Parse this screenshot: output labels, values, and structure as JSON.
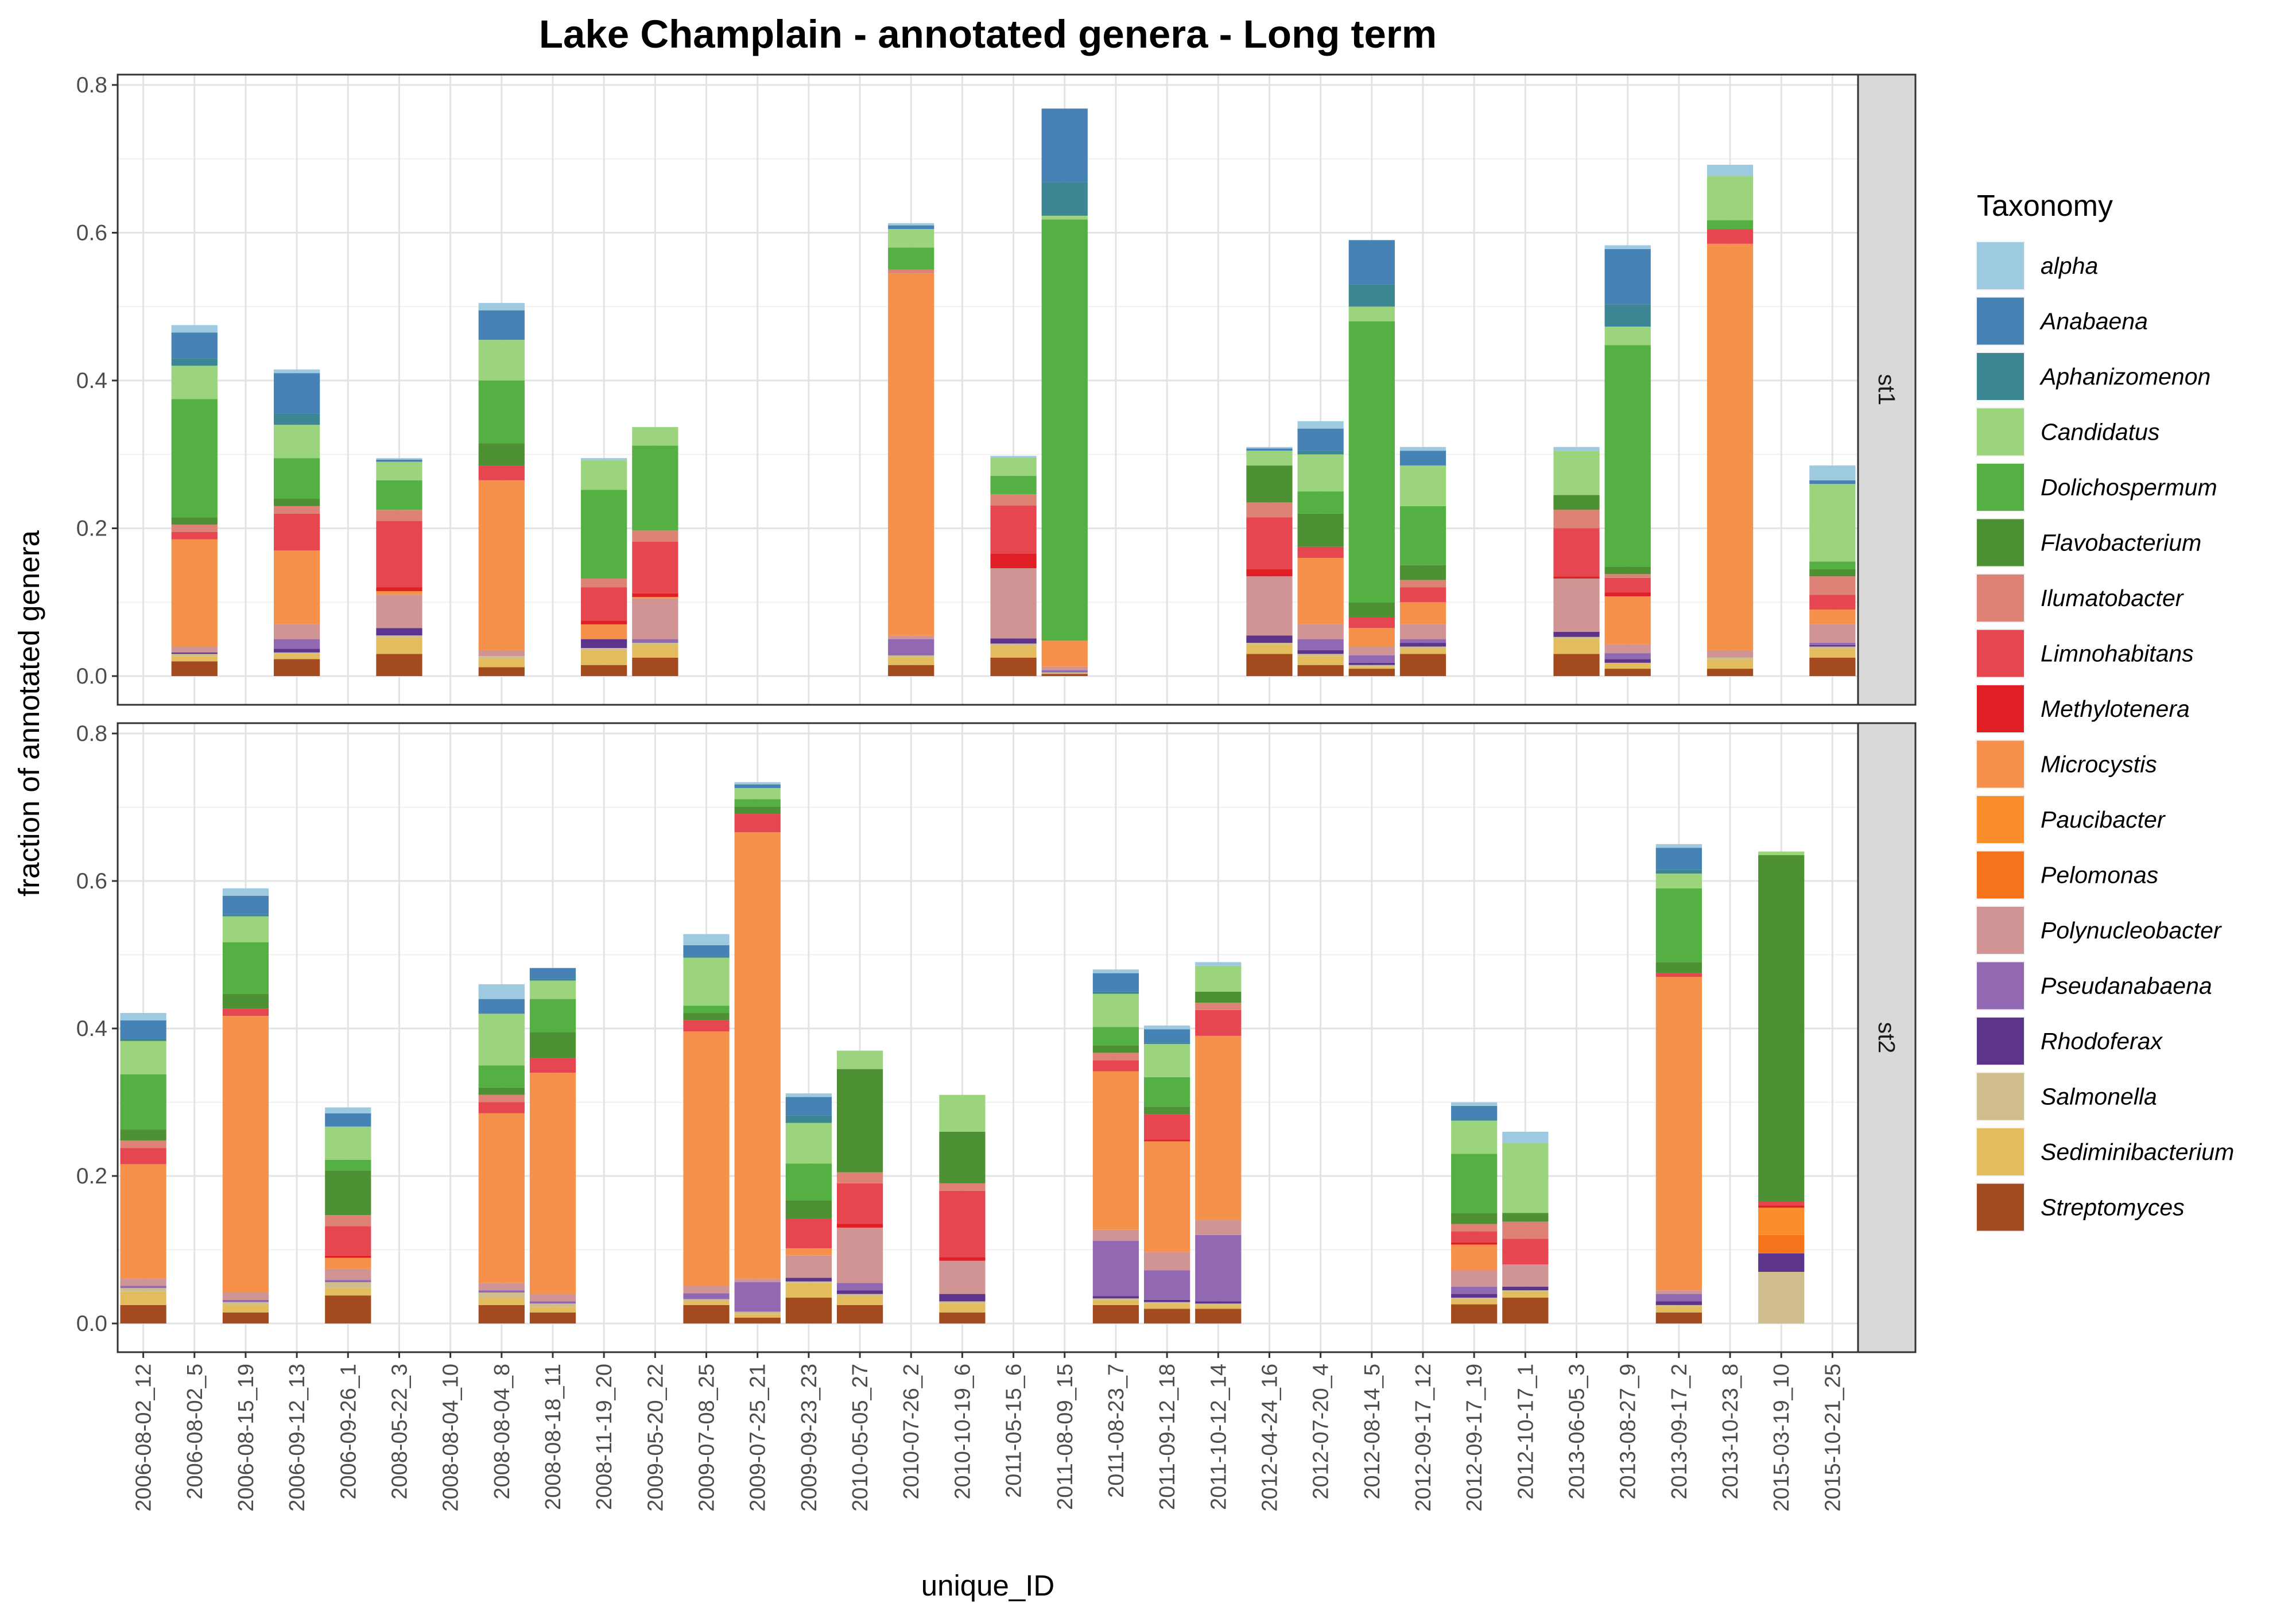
{
  "chart_data": {
    "type": "bar",
    "stacked": true,
    "faceted": true,
    "title": "Lake Champlain - annotated genera - Long term",
    "xlabel": "unique_ID",
    "ylabel": "fraction of annotated genera",
    "ylim": [
      0,
      0.8
    ],
    "yticks": [
      "0.0",
      "0.2",
      "0.4",
      "0.6",
      "0.8"
    ],
    "grid": true,
    "legend_position": "right",
    "legend_title": "Taxonomy",
    "categories": [
      "2006-08-02_12",
      "2006-08-02_5",
      "2006-08-15_19",
      "2006-09-12_13",
      "2006-09-26_1",
      "2008-05-22_3",
      "2008-08-04_10",
      "2008-08-04_8",
      "2008-08-18_11",
      "2008-11-19_20",
      "2009-05-20_22",
      "2009-07-08_25",
      "2009-07-25_21",
      "2009-09-23_23",
      "2010-05-05_27",
      "2010-07-26_2",
      "2010-10-19_6",
      "2011-05-15_6",
      "2011-08-09_15",
      "2011-08-23_7",
      "2011-09-12_18",
      "2011-10-12_14",
      "2012-04-24_16",
      "2012-07-20_4",
      "2012-08-14_5",
      "2012-09-17_12",
      "2012-09-17_19",
      "2012-10-17_1",
      "2013-06-05_3",
      "2013-08-27_9",
      "2013-09-17_2",
      "2013-10-23_8",
      "2015-03-19_10",
      "2015-10-21_25"
    ],
    "taxa": [
      "alpha",
      "Anabaena",
      "Aphanizomenon",
      "Candidatus",
      "Dolichospermum",
      "Flavobacterium",
      "Ilumatobacter",
      "Limnohabitans",
      "Methylotenera",
      "Microcystis",
      "Paucibacter",
      "Pelomonas",
      "Polynucleobacter",
      "Pseudanabaena",
      "Rhodoferax",
      "Salmonella",
      "Sediminibacterium",
      "Streptomyces"
    ],
    "colors": [
      "#9ecae1",
      "#4682b4",
      "#3d8794",
      "#9cd47e",
      "#55b043",
      "#4e9135",
      "#de8275",
      "#e64650",
      "#e01f24",
      "#f5914b",
      "#fa8e2b",
      "#f5731a",
      "#cf9493",
      "#9168b1",
      "#5c348c",
      "#cfbe8c",
      "#e3bc5e",
      "#a34a1f"
    ],
    "facets": [
      {
        "name": "st1",
        "bars": {
          "2006-08-02_5": [
            0.01,
            0.035,
            0.01,
            0.045,
            0.16,
            0.01,
            0.01,
            0.01,
            0.0,
            0.145,
            0.0,
            0.0,
            0.008,
            0.0,
            0.002,
            0.003,
            0.007,
            0.02
          ],
          "2006-09-12_13": [
            0.005,
            0.055,
            0.015,
            0.045,
            0.055,
            0.01,
            0.01,
            0.05,
            0.0,
            0.1,
            0.0,
            0.0,
            0.02,
            0.013,
            0.005,
            0.002,
            0.007,
            0.023
          ],
          "2008-05-22_3": [
            0.002,
            0.003,
            0.0,
            0.025,
            0.04,
            0.0,
            0.015,
            0.09,
            0.005,
            0.005,
            0.0,
            0.0,
            0.045,
            0.0,
            0.01,
            0.003,
            0.022,
            0.03
          ],
          "2008-08-04_8": [
            0.01,
            0.04,
            0.0,
            0.055,
            0.085,
            0.03,
            0.0,
            0.02,
            0.0,
            0.23,
            0.0,
            0.0,
            0.008,
            0.0,
            0.0,
            0.003,
            0.012,
            0.012
          ],
          "2008-11-19_20": [
            0.003,
            0.0,
            0.0,
            0.04,
            0.12,
            0.0,
            0.012,
            0.045,
            0.005,
            0.02,
            0.0,
            0.0,
            0.0,
            0.0,
            0.012,
            0.003,
            0.02,
            0.015
          ],
          "2009-05-20_22": [
            0.0,
            0.0,
            0.0,
            0.025,
            0.115,
            0.0,
            0.015,
            0.07,
            0.005,
            0.002,
            0.0,
            0.0,
            0.055,
            0.005,
            0.0,
            0.003,
            0.017,
            0.025
          ],
          "2010-07-26_2": [
            0.003,
            0.005,
            0.0,
            0.025,
            0.03,
            0.0,
            0.005,
            0.0,
            0.0,
            0.49,
            0.0,
            0.0,
            0.005,
            0.022,
            0.0,
            0.003,
            0.01,
            0.015
          ],
          "2011-05-15_6": [
            0.002,
            0.0,
            0.0,
            0.025,
            0.025,
            0.0,
            0.015,
            0.065,
            0.02,
            0.0,
            0.0,
            0.0,
            0.095,
            0.0,
            0.007,
            0.003,
            0.016,
            0.025
          ],
          "2011-08-09_15": [
            0.0,
            0.1,
            0.045,
            0.005,
            0.57,
            0.0,
            0.0,
            0.0,
            0.0,
            0.035,
            0.0,
            0.0,
            0.005,
            0.003,
            0.0,
            0.002,
            0.0,
            0.003
          ],
          "2012-04-24_16": [
            0.002,
            0.003,
            0.0,
            0.02,
            0.0,
            0.05,
            0.02,
            0.07,
            0.01,
            0.0,
            0.0,
            0.0,
            0.08,
            0.0,
            0.01,
            0.003,
            0.012,
            0.03
          ],
          "2012-07-20_4": [
            0.01,
            0.03,
            0.005,
            0.05,
            0.03,
            0.045,
            0.0,
            0.015,
            0.0,
            0.09,
            0.0,
            0.0,
            0.02,
            0.015,
            0.005,
            0.003,
            0.012,
            0.015
          ],
          "2012-08-14_5": [
            0.0,
            0.06,
            0.03,
            0.02,
            0.38,
            0.02,
            0.0,
            0.015,
            0.0,
            0.025,
            0.0,
            0.0,
            0.012,
            0.01,
            0.003,
            0.002,
            0.003,
            0.01
          ],
          "2012-09-17_12": [
            0.005,
            0.02,
            0.0,
            0.055,
            0.08,
            0.02,
            0.01,
            0.02,
            0.0,
            0.03,
            0.0,
            0.0,
            0.02,
            0.005,
            0.005,
            0.002,
            0.008,
            0.03
          ],
          "2013-06-05_3": [
            0.005,
            0.0,
            0.0,
            0.06,
            0.0,
            0.02,
            0.025,
            0.065,
            0.003,
            0.0,
            0.0,
            0.0,
            0.072,
            0.0,
            0.007,
            0.003,
            0.02,
            0.03
          ],
          "2013-08-27_9": [
            0.005,
            0.075,
            0.03,
            0.025,
            0.3,
            0.01,
            0.005,
            0.02,
            0.005,
            0.065,
            0.0,
            0.0,
            0.012,
            0.008,
            0.005,
            0.0,
            0.008,
            0.01
          ],
          "2013-10-23_8": [
            0.015,
            0.0,
            0.0,
            0.06,
            0.012,
            0.0,
            0.0,
            0.02,
            0.0,
            0.55,
            0.0,
            0.0,
            0.01,
            0.0,
            0.0,
            0.003,
            0.012,
            0.01
          ],
          "2015-10-21_25": [
            0.02,
            0.005,
            0.0,
            0.105,
            0.01,
            0.01,
            0.025,
            0.02,
            0.0,
            0.02,
            0.0,
            0.0,
            0.025,
            0.003,
            0.002,
            0.003,
            0.012,
            0.025
          ]
        }
      },
      {
        "name": "st2",
        "bars": {
          "2006-08-02_12": [
            0.01,
            0.025,
            0.003,
            0.045,
            0.075,
            0.015,
            0.01,
            0.022,
            0.0,
            0.155,
            0.0,
            0.0,
            0.01,
            0.003,
            0.0,
            0.005,
            0.018,
            0.025
          ],
          "2006-08-15_19": [
            0.01,
            0.025,
            0.003,
            0.035,
            0.07,
            0.02,
            0.0,
            0.01,
            0.0,
            0.375,
            0.0,
            0.0,
            0.01,
            0.003,
            0.0,
            0.004,
            0.01,
            0.015
          ],
          "2006-09-26_1": [
            0.008,
            0.018,
            0.0,
            0.045,
            0.015,
            0.06,
            0.015,
            0.04,
            0.003,
            0.015,
            0.0,
            0.0,
            0.015,
            0.003,
            0.0,
            0.008,
            0.01,
            0.038
          ],
          "2008-08-04_8": [
            0.02,
            0.02,
            0.0,
            0.07,
            0.03,
            0.01,
            0.01,
            0.015,
            0.0,
            0.23,
            0.0,
            0.0,
            0.01,
            0.003,
            0.0,
            0.007,
            0.01,
            0.025
          ],
          "2008-08-18_11": [
            0.0,
            0.015,
            0.002,
            0.025,
            0.045,
            0.035,
            0.0,
            0.02,
            0.0,
            0.3,
            0.0,
            0.0,
            0.01,
            0.003,
            0.0,
            0.005,
            0.007,
            0.015
          ],
          "2009-07-08_25": [
            0.015,
            0.015,
            0.002,
            0.065,
            0.01,
            0.01,
            0.0,
            0.015,
            0.0,
            0.345,
            0.0,
            0.0,
            0.01,
            0.008,
            0.0,
            0.003,
            0.005,
            0.025
          ],
          "2009-07-25_21": [
            0.003,
            0.005,
            0.0,
            0.015,
            0.01,
            0.01,
            0.0,
            0.025,
            0.0,
            0.605,
            0.0,
            0.0,
            0.005,
            0.04,
            0.0,
            0.003,
            0.005,
            0.008
          ],
          "2009-09-23_23": [
            0.005,
            0.025,
            0.01,
            0.055,
            0.05,
            0.025,
            0.0,
            0.04,
            0.0,
            0.01,
            0.0,
            0.0,
            0.03,
            0.0,
            0.005,
            0.002,
            0.02,
            0.035
          ],
          "2010-05-05_27": [
            0.0,
            0.0,
            0.0,
            0.025,
            0.0,
            0.14,
            0.015,
            0.055,
            0.005,
            0.0,
            0.0,
            0.0,
            0.075,
            0.01,
            0.005,
            0.003,
            0.012,
            0.025
          ],
          "2010-10-19_6": [
            0.0,
            0.0,
            0.0,
            0.05,
            0.0,
            0.07,
            0.01,
            0.09,
            0.005,
            0.0,
            0.0,
            0.0,
            0.045,
            0.0,
            0.01,
            0.003,
            0.012,
            0.015
          ],
          "2011-08-23_7": [
            0.005,
            0.025,
            0.003,
            0.045,
            0.025,
            0.01,
            0.01,
            0.015,
            0.0,
            0.215,
            0.0,
            0.0,
            0.015,
            0.075,
            0.003,
            0.002,
            0.007,
            0.025
          ],
          "2011-09-12_18": [
            0.005,
            0.018,
            0.002,
            0.045,
            0.04,
            0.01,
            0.0,
            0.035,
            0.002,
            0.15,
            0.0,
            0.0,
            0.025,
            0.04,
            0.003,
            0.002,
            0.007,
            0.02
          ],
          "2011-10-12_14": [
            0.005,
            0.0,
            0.0,
            0.035,
            0.0,
            0.015,
            0.01,
            0.035,
            0.0,
            0.25,
            0.0,
            0.0,
            0.02,
            0.09,
            0.003,
            0.002,
            0.005,
            0.02
          ],
          "2012-09-17_19": [
            0.005,
            0.018,
            0.002,
            0.045,
            0.08,
            0.015,
            0.01,
            0.015,
            0.003,
            0.035,
            0.0,
            0.0,
            0.022,
            0.01,
            0.005,
            0.002,
            0.007,
            0.026
          ],
          "2012-10-17_1": [
            0.015,
            0.0,
            0.0,
            0.095,
            0.0,
            0.012,
            0.023,
            0.035,
            0.0,
            0.0,
            0.0,
            0.0,
            0.03,
            0.0,
            0.005,
            0.002,
            0.008,
            0.035
          ],
          "2013-09-17_2": [
            0.005,
            0.03,
            0.005,
            0.02,
            0.1,
            0.015,
            0.0,
            0.005,
            0.0,
            0.425,
            0.0,
            0.0,
            0.005,
            0.01,
            0.005,
            0.002,
            0.008,
            0.015
          ],
          "2015-03-19_10": [
            0.0,
            0.0,
            0.0,
            0.005,
            0.0,
            0.47,
            0.0,
            0.005,
            0.003,
            0.0,
            0.037,
            0.025,
            0.0,
            0.0,
            0.025,
            0.07,
            0.0,
            0.0
          ]
        }
      }
    ]
  }
}
